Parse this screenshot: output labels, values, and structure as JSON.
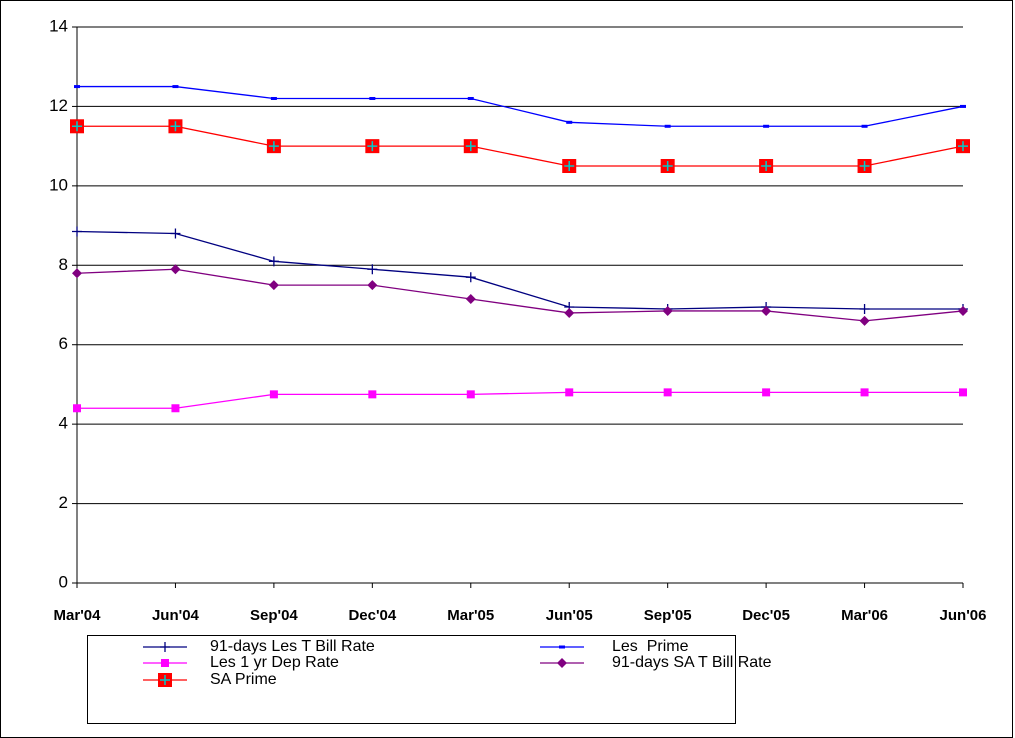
{
  "chart_data": {
    "type": "line",
    "categories": [
      "Mar'04",
      "Jun'04",
      "Sep'04",
      "Dec'04",
      "Mar'05",
      "Jun'05",
      "Sep'05",
      "Dec'05",
      "Mar'06",
      "Jun'06"
    ],
    "series": [
      {
        "name": "91-days Les T Bill Rate",
        "color": "#000080",
        "marker": "plus",
        "values": [
          8.85,
          8.8,
          8.1,
          7.9,
          7.7,
          6.95,
          6.9,
          6.95,
          6.9,
          6.9
        ]
      },
      {
        "name": "Les  Prime",
        "color": "#0000ff",
        "marker": "dash",
        "values": [
          12.5,
          12.5,
          12.2,
          12.2,
          12.2,
          11.6,
          11.5,
          11.5,
          11.5,
          12.0
        ]
      },
      {
        "name": "Les 1 yr Dep Rate",
        "color": "#ff00ff",
        "marker": "square",
        "values": [
          4.4,
          4.4,
          4.75,
          4.75,
          4.75,
          4.8,
          4.8,
          4.8,
          4.8,
          4.8
        ]
      },
      {
        "name": "91-days SA T Bill Rate",
        "color": "#800080",
        "marker": "diamond",
        "values": [
          7.8,
          7.9,
          7.5,
          7.5,
          7.15,
          6.8,
          6.85,
          6.85,
          6.6,
          6.85
        ]
      },
      {
        "name": "SA Prime",
        "color": "#ff0000",
        "marker": "square-cross",
        "values": [
          11.5,
          11.5,
          11.0,
          11.0,
          11.0,
          10.5,
          10.5,
          10.5,
          10.5,
          11.0
        ]
      }
    ],
    "ylim": [
      0,
      14
    ],
    "yticks": [
      0,
      2,
      4,
      6,
      8,
      10,
      12,
      14
    ],
    "grid": true,
    "legend": "bottom"
  }
}
